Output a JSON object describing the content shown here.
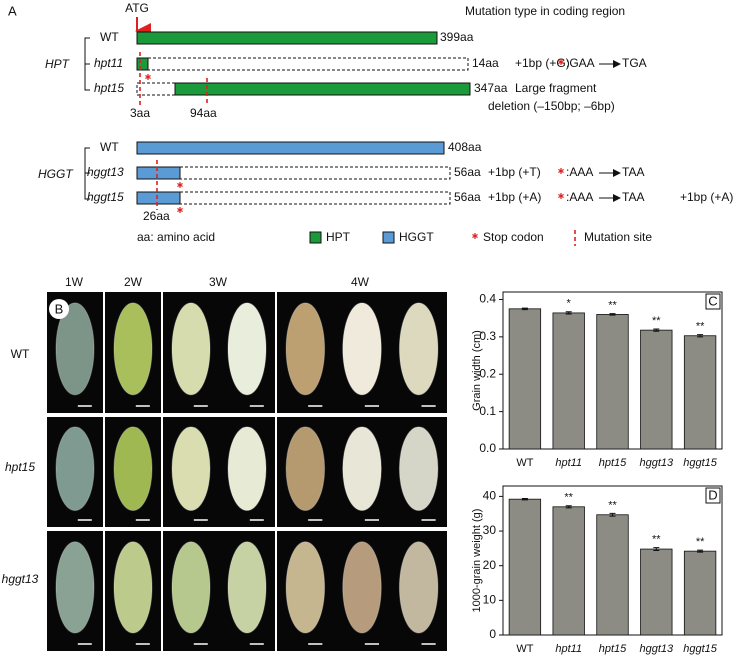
{
  "panel_a": {
    "label": "A",
    "atg": "ATG",
    "heading": "Mutation type in coding region",
    "hpt": {
      "name": "HPT",
      "rows": [
        {
          "name": "WT",
          "length": "399aa"
        },
        {
          "name": "hpt11",
          "length": "14aa",
          "insertion": "+1bp (+G)",
          "codon": ":GAA",
          "stop": "TGA"
        },
        {
          "name": "hpt15",
          "length": "347aa",
          "note": [
            "Large fragment",
            "deletion (–150bp; –6bp)"
          ]
        }
      ],
      "sites": [
        "3aa",
        "94aa"
      ]
    },
    "hggt": {
      "name": "HGGT",
      "rows": [
        {
          "name": "WT",
          "length": "408aa"
        },
        {
          "name": "hggt13",
          "length": "56aa",
          "insertion": "+1bp (+T)",
          "codon": ":AAA",
          "stop": "TAA"
        },
        {
          "name": "hggt15",
          "length": "56aa",
          "insertion": "+1bp (+A)",
          "codon": ":AAA",
          "stop": "TAA",
          "extra": "+1bp (+A)"
        }
      ],
      "sites": [
        "26aa"
      ]
    },
    "legend": [
      "aa: amino acid",
      "HPT",
      "HGGT",
      "Stop codon",
      "Mutation site"
    ]
  },
  "panel_b": {
    "label": "B",
    "columns": [
      "1W",
      "2W",
      "3W",
      "4W"
    ],
    "rows": [
      "WT",
      "hpt15",
      "hggt13"
    ]
  },
  "chart_data": [
    {
      "type": "bar",
      "label": "C",
      "y_label": "Grain width (cm)",
      "categories": [
        "WT",
        "hpt11",
        "hpt15",
        "hggt13",
        "hggt15"
      ],
      "values": [
        0.375,
        0.364,
        0.36,
        0.318,
        0.303
      ],
      "errors": [
        0.002,
        0.003,
        0.002,
        0.003,
        0.003
      ],
      "significance": [
        null,
        "*",
        "**",
        "**",
        "**"
      ],
      "color": "#8c8c84",
      "ylim": [
        0,
        0.42
      ],
      "yticks": [
        {
          "value": 0,
          "label": "0.0"
        },
        0.1,
        0.2,
        0.3,
        0.4
      ]
    },
    {
      "type": "bar",
      "label": "D",
      "y_label": "1000-grain weight (g)",
      "categories": [
        "WT",
        "hpt11",
        "hpt15",
        "hggt13",
        "hggt15"
      ],
      "values": [
        39.2,
        37.0,
        34.7,
        24.8,
        24.2
      ],
      "errors": [
        0.2,
        0.3,
        0.4,
        0.4,
        0.3
      ],
      "significance": [
        null,
        "**",
        "**",
        "**",
        "**"
      ],
      "color": "#8c8c84",
      "ylim": [
        0,
        43
      ],
      "yticks": [
        0,
        10,
        20,
        30,
        40
      ]
    }
  ]
}
